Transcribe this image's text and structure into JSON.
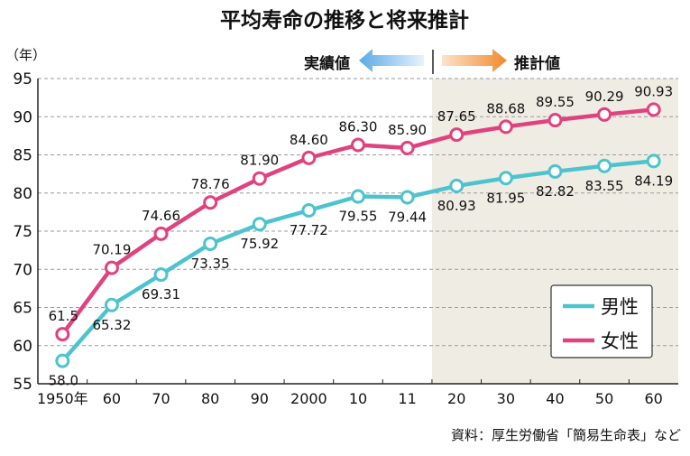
{
  "chart_data": {
    "type": "line",
    "title": "平均寿命の推移と将来推計",
    "y_unit": "（年）",
    "ylim": [
      55,
      95
    ],
    "y_ticks": [
      55,
      60,
      65,
      70,
      75,
      80,
      85,
      90,
      95
    ],
    "grid": true,
    "categories": [
      "1950年",
      "60",
      "70",
      "80",
      "90",
      "2000",
      "10",
      "11",
      "20",
      "30",
      "40",
      "50",
      "60"
    ],
    "series": [
      {
        "name": "男性",
        "color": "#4dc3cf",
        "values": [
          58.0,
          65.32,
          69.31,
          73.35,
          75.92,
          77.72,
          79.55,
          79.44,
          80.93,
          81.95,
          82.82,
          83.55,
          84.19
        ],
        "labels": [
          "58.0",
          "65.32",
          "69.31",
          "73.35",
          "75.92",
          "77.72",
          "79.55",
          "79.44",
          "80.93",
          "81.95",
          "82.82",
          "83.55",
          "84.19"
        ]
      },
      {
        "name": "女性",
        "color": "#e0427f",
        "values": [
          61.5,
          70.19,
          74.66,
          78.76,
          81.9,
          84.6,
          86.3,
          85.9,
          87.65,
          88.68,
          89.55,
          90.29,
          90.93
        ],
        "labels": [
          "61.5",
          "70.19",
          "74.66",
          "78.76",
          "81.90",
          "84.60",
          "86.30",
          "85.90",
          "87.65",
          "88.68",
          "89.55",
          "90.29",
          "90.93"
        ]
      }
    ],
    "regions": {
      "actual_label": "実績値",
      "projected_label": "推計値",
      "projected_start_after_category": "11",
      "projected_shade_color": "#efede3"
    },
    "legend_position": "bottom-right",
    "source": "資料：厚生労働省「簡易生命表」など"
  }
}
